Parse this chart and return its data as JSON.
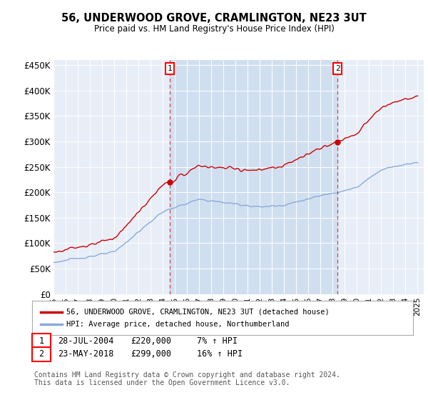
{
  "title": "56, UNDERWOOD GROVE, CRAMLINGTON, NE23 3UT",
  "subtitle": "Price paid vs. HM Land Registry's House Price Index (HPI)",
  "ylabel_ticks": [
    "£0",
    "£50K",
    "£100K",
    "£150K",
    "£200K",
    "£250K",
    "£300K",
    "£350K",
    "£400K",
    "£450K"
  ],
  "ytick_values": [
    0,
    50000,
    100000,
    150000,
    200000,
    250000,
    300000,
    350000,
    400000,
    450000
  ],
  "ylim": [
    0,
    460000
  ],
  "xlim_start": 1995.0,
  "xlim_end": 2025.5,
  "bg_color": "#e8eef7",
  "sale_region_color": "#d0dff0",
  "line1_color": "#cc0000",
  "line2_color": "#88aadd",
  "sale1_year": 2004.57,
  "sale1_price": 220000,
  "sale2_year": 2018.39,
  "sale2_price": 299000,
  "legend1": "56, UNDERWOOD GROVE, CRAMLINGTON, NE23 3UT (detached house)",
  "legend2": "HPI: Average price, detached house, Northumberland",
  "annotation1_date": "28-JUL-2004",
  "annotation1_price": "£220,000",
  "annotation1_hpi": "7% ↑ HPI",
  "annotation2_date": "23-MAY-2018",
  "annotation2_price": "£299,000",
  "annotation2_hpi": "16% ↑ HPI",
  "footer": "Contains HM Land Registry data © Crown copyright and database right 2024.\nThis data is licensed under the Open Government Licence v3.0."
}
